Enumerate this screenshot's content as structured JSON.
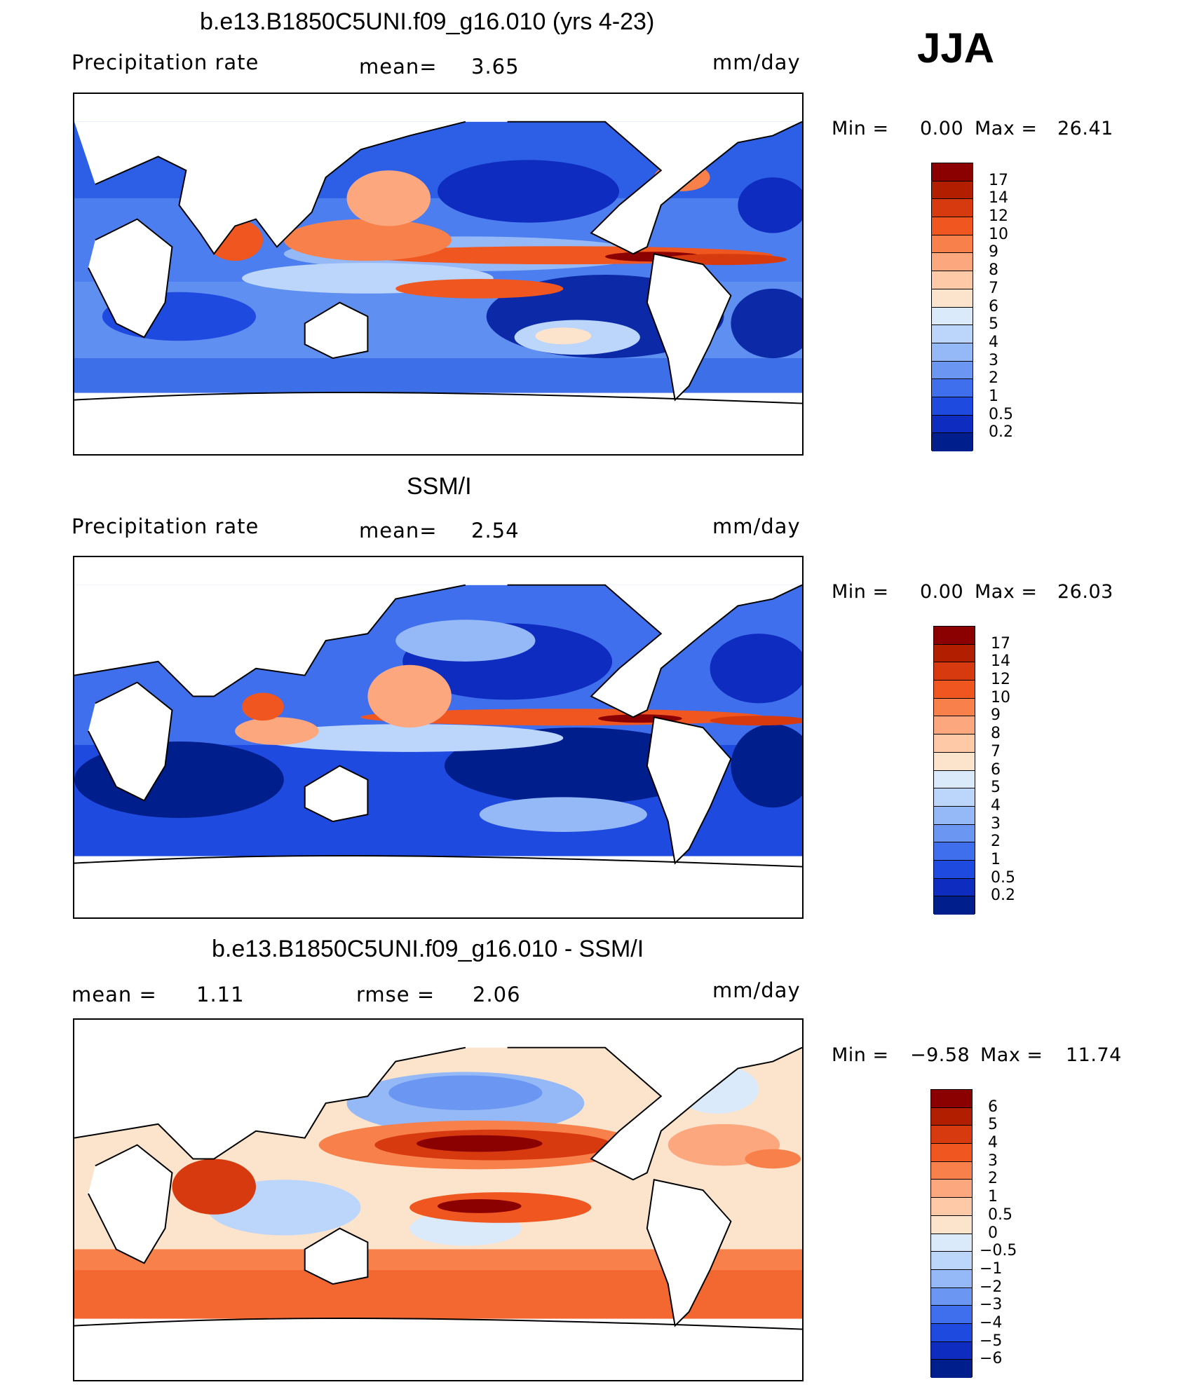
{
  "season": "JJA",
  "panels": [
    {
      "title": "b.e13.B1850C5UNI.f09_g16.010 (yrs 4-23)",
      "left_label": "Precipitation rate",
      "stat_label": "mean=",
      "stat_value": "3.65",
      "units": "mm/day",
      "min_label": "Min =",
      "min_value": "0.00",
      "max_label": "Max =",
      "max_value": "26.41",
      "colorbar": {
        "labels": [
          "17",
          "14",
          "12",
          "10",
          "9",
          "8",
          "7",
          "6",
          "5",
          "4",
          "3",
          "2",
          "1",
          "0.5",
          "0.2"
        ],
        "colors": [
          "#8b0000",
          "#b21f00",
          "#d83a10",
          "#f0561f",
          "#f8804a",
          "#fca77e",
          "#fdc9a6",
          "#fce4cc",
          "#dbeafb",
          "#bcd5fb",
          "#95b8f6",
          "#6b97f2",
          "#3f6fec",
          "#1f4ae0",
          "#0e2cc0",
          "#001e8c"
        ]
      }
    },
    {
      "title": "SSM/I",
      "left_label": "Precipitation rate",
      "stat_label": "mean=",
      "stat_value": "2.54",
      "units": "mm/day",
      "min_label": "Min =",
      "min_value": "0.00",
      "max_label": "Max =",
      "max_value": "26.03",
      "colorbar": {
        "labels": [
          "17",
          "14",
          "12",
          "10",
          "9",
          "8",
          "7",
          "6",
          "5",
          "4",
          "3",
          "2",
          "1",
          "0.5",
          "0.2"
        ],
        "colors": [
          "#8b0000",
          "#b21f00",
          "#d83a10",
          "#f0561f",
          "#f8804a",
          "#fca77e",
          "#fdc9a6",
          "#fce4cc",
          "#dbeafb",
          "#bcd5fb",
          "#95b8f6",
          "#6b97f2",
          "#3f6fec",
          "#1f4ae0",
          "#0e2cc0",
          "#001e8c"
        ]
      }
    },
    {
      "title": "b.e13.B1850C5UNI.f09_g16.010 - SSM/I",
      "left_label": "mean =",
      "left_value": "1.11",
      "stat_label": "rmse =",
      "stat_value": "2.06",
      "units": "mm/day",
      "min_label": "Min =",
      "min_value": "−9.58",
      "max_label": "Max =",
      "max_value": "11.74",
      "colorbar": {
        "labels": [
          "6",
          "5",
          "4",
          "3",
          "2",
          "1",
          "0.5",
          "0",
          "−0.5",
          "−1",
          "−2",
          "−3",
          "−4",
          "−5",
          "−6"
        ],
        "colors": [
          "#8b0000",
          "#b21f00",
          "#d83a10",
          "#f0561f",
          "#f8804a",
          "#fca77e",
          "#fdc9a6",
          "#fce4cc",
          "#dbeafb",
          "#bcd5fb",
          "#95b8f6",
          "#6b97f2",
          "#3f6fec",
          "#1f4ae0",
          "#0e2cc0",
          "#001e8c"
        ]
      }
    }
  ]
}
